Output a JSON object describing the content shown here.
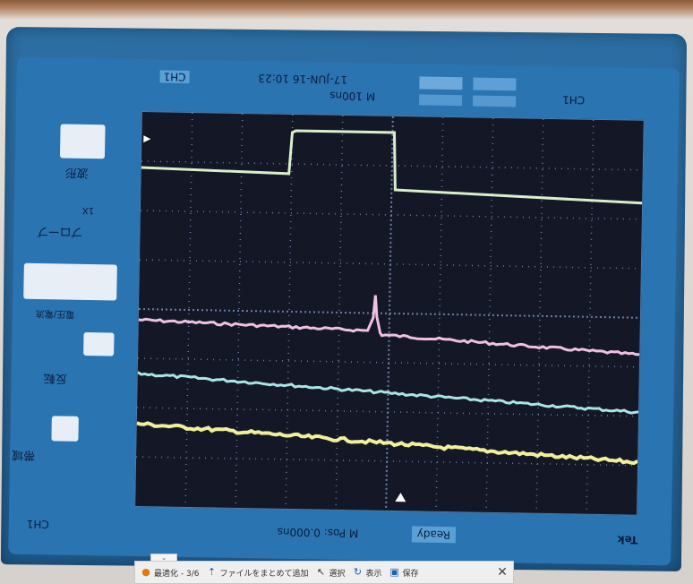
{
  "status": {
    "date_time": "17-JUN-16 10:23",
    "timebase": "M 100ns",
    "trigger": "CH1",
    "ch1_info": "CH1"
  },
  "bottom": {
    "timebase": "M Pos: 0.000ns",
    "ready": "Ready",
    "brand": "Tek",
    "channel": "CH1"
  },
  "menu": {
    "item1": "波形",
    "item2": "1X",
    "item3": "プローブ",
    "item4": "電圧/電流",
    "item5": "反転",
    "item6": "帯域"
  },
  "taskbar": {
    "i1": "最適化 - 3/6",
    "i2": "ファイルをまとめて追加",
    "i3": "選択",
    "i4": "表示",
    "i5": "保存"
  },
  "trace_colors": {
    "ch1": "#d8efc9",
    "ch2": "#f0bfe4",
    "ch3": "#a9e4e6",
    "ch4": "#f2ef9a"
  }
}
